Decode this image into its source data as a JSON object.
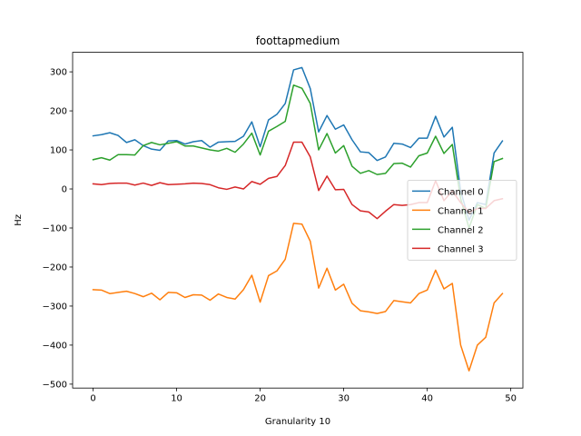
{
  "chart_data": {
    "type": "line",
    "title": "foottapmedium",
    "xlabel": "Granularity 10",
    "ylabel": "Hz",
    "xlim": [
      -2.45,
      51.45
    ],
    "ylim": [
      -510,
      350
    ],
    "x_ticks": [
      0,
      10,
      20,
      30,
      40,
      50
    ],
    "y_ticks": [
      -500,
      -400,
      -300,
      -200,
      -100,
      0,
      100,
      200,
      300
    ],
    "grid": false,
    "legend_position": "center-right",
    "x": [
      0,
      1,
      2,
      3,
      4,
      5,
      6,
      7,
      8,
      9,
      10,
      11,
      12,
      13,
      14,
      15,
      16,
      17,
      18,
      19,
      20,
      21,
      22,
      23,
      24,
      25,
      26,
      27,
      28,
      29,
      30,
      31,
      32,
      33,
      34,
      35,
      36,
      37,
      38,
      39,
      40,
      41,
      42,
      43,
      44,
      45,
      46,
      47,
      48,
      49
    ],
    "series": [
      {
        "name": "Channel 0",
        "color": "#1f77b4",
        "values": [
          136,
          139,
          144,
          137,
          119,
          126,
          111,
          102,
          99,
          123,
          124,
          115,
          121,
          124,
          107,
          120,
          121,
          122,
          135,
          172,
          108,
          177,
          191,
          219,
          305,
          311,
          257,
          146,
          188,
          153,
          164,
          126,
          95,
          93,
          73,
          82,
          117,
          115,
          106,
          130,
          130,
          186,
          133,
          158,
          -5,
          -80,
          -35,
          -40,
          92,
          123
        ]
      },
      {
        "name": "Channel 1",
        "color": "#ff7f0e",
        "values": [
          -258,
          -259,
          -268,
          -265,
          -262,
          -268,
          -276,
          -267,
          -284,
          -265,
          -266,
          -278,
          -271,
          -272,
          -285,
          -269,
          -278,
          -282,
          -258,
          -221,
          -290,
          -222,
          -210,
          -180,
          -88,
          -90,
          -134,
          -254,
          -203,
          -259,
          -244,
          -293,
          -312,
          -315,
          -319,
          -314,
          -286,
          -289,
          -292,
          -268,
          -259,
          -208,
          -256,
          -242,
          -400,
          -466,
          -400,
          -380,
          -292,
          -268
        ]
      },
      {
        "name": "Channel 2",
        "color": "#2ca02c",
        "values": [
          75,
          80,
          74,
          88,
          88,
          87,
          111,
          119,
          113,
          117,
          121,
          110,
          110,
          105,
          100,
          97,
          104,
          94,
          115,
          143,
          87,
          148,
          160,
          173,
          266,
          258,
          219,
          100,
          142,
          92,
          111,
          58,
          40,
          47,
          37,
          40,
          65,
          66,
          56,
          85,
          92,
          135,
          91,
          114,
          -25,
          -100,
          -40,
          -50,
          70,
          78
        ]
      },
      {
        "name": "Channel 3",
        "color": "#d62728",
        "values": [
          13,
          11,
          14,
          15,
          15,
          10,
          15,
          9,
          16,
          11,
          12,
          13,
          15,
          14,
          11,
          3,
          -1,
          5,
          0,
          19,
          12,
          27,
          32,
          60,
          120,
          120,
          82,
          -4,
          33,
          -2,
          -1,
          -40,
          -56,
          -59,
          -76,
          -57,
          -40,
          -42,
          -40,
          -35,
          -35,
          21,
          -30,
          -5,
          -35,
          -60,
          -50,
          -50,
          -30,
          -25
        ]
      }
    ]
  }
}
